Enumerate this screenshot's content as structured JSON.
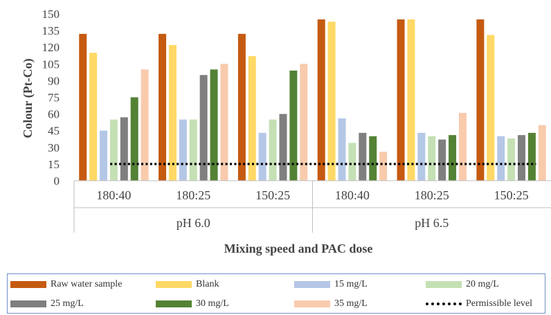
{
  "chart_data": {
    "type": "bar",
    "title": "",
    "xlabel": "Mixing speed and PAC dose",
    "ylabel": "Colour (Pt-Co)",
    "ylim": [
      0,
      150
    ],
    "yticks": [
      0,
      15,
      30,
      45,
      60,
      75,
      90,
      105,
      120,
      135,
      150
    ],
    "grid": false,
    "legend_position": "bottom",
    "categories": [
      "180:40",
      "180:25",
      "150:25",
      "180:40",
      "180:25",
      "150:25"
    ],
    "groups": [
      {
        "label": "pH 6.0",
        "categories": [
          "180:40",
          "180:25",
          "150:25"
        ]
      },
      {
        "label": "pH 6.5",
        "categories": [
          "180:40",
          "180:25",
          "150:25"
        ]
      }
    ],
    "series": [
      {
        "name": "Raw water sample",
        "color": "#c55a11",
        "values": [
          132,
          132,
          132,
          145,
          145,
          145
        ]
      },
      {
        "name": "Blank",
        "color": "#ffd966",
        "values": [
          115,
          122,
          112,
          143,
          145,
          131
        ]
      },
      {
        "name": "15 mg/L",
        "color": "#b4c7e7",
        "values": [
          45,
          55,
          43,
          56,
          43,
          40
        ]
      },
      {
        "name": "20 mg/L",
        "color": "#c5e0b4",
        "values": [
          55,
          55,
          55,
          34,
          40,
          38
        ]
      },
      {
        "name": "25 mg/L",
        "color": "#7f7f7f",
        "values": [
          57,
          95,
          60,
          43,
          37,
          41
        ]
      },
      {
        "name": "30 mg/L",
        "color": "#548235",
        "values": [
          75,
          100,
          99,
          40,
          41,
          43
        ]
      },
      {
        "name": "35 mg/L",
        "color": "#f8cbad",
        "values": [
          100,
          105,
          105,
          26,
          61,
          50
        ]
      }
    ],
    "reference_line": {
      "name": "Permissible level",
      "value": 15,
      "color": "#000000",
      "style": "dotted"
    }
  }
}
